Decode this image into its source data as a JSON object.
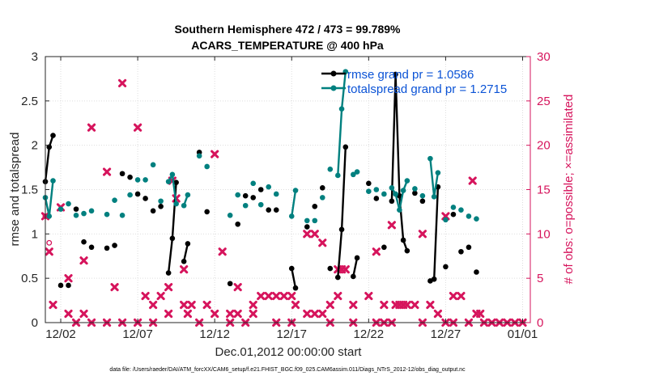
{
  "chart_data": {
    "type": "line",
    "title": [
      "Southern Hemisphere 472 / 473 = 99.789%",
      "ACARS_TEMPERATURE @ 400 hPa"
    ],
    "xlabel": "Dec.01,2012 00:00:00 start",
    "ylabel_left": "rmse and totalspread",
    "ylabel_right": "# of obs: o=possible; ×=assimilated",
    "xlim": [
      0,
      31.5
    ],
    "ylim_left": [
      0,
      3
    ],
    "ylim_right": [
      0,
      30
    ],
    "x_ticks": [
      1,
      6,
      11,
      16,
      21,
      26,
      31
    ],
    "x_tick_labels": [
      "12/02",
      "12/07",
      "12/12",
      "12/17",
      "12/22",
      "12/27",
      "01/01"
    ],
    "y_ticks_left": [
      0,
      0.5,
      1,
      1.5,
      2,
      2.5,
      3
    ],
    "y_tick_labels_left": [
      "0",
      "0.5",
      "1",
      "1.5",
      "2",
      "2.5",
      "3"
    ],
    "y_ticks_right": [
      0,
      5,
      10,
      15,
      20,
      25,
      30
    ],
    "y_tick_labels_right": [
      "0",
      "5",
      "10",
      "15",
      "20",
      "25",
      "30"
    ],
    "colors": {
      "rmse": "#000000",
      "spread": "#00807f",
      "obs": "#d6145c",
      "legend_text": "#0b53d6"
    },
    "legend": [
      {
        "label": "rmse grand pr = 1.0586",
        "series": "rmse"
      },
      {
        "label": "totalspread grand pr = 1.2715",
        "series": "spread"
      }
    ],
    "series": [
      {
        "name": "rmse",
        "points": [
          [
            0,
            1.59
          ],
          [
            0.25,
            1.98
          ],
          [
            0.5,
            2.11
          ],
          [
            1,
            0.42
          ],
          [
            1.5,
            0.42
          ],
          [
            2,
            1.28
          ],
          [
            2.5,
            0.91
          ],
          [
            3,
            0.85
          ],
          [
            4,
            0.84
          ],
          [
            4.5,
            0.87
          ],
          [
            5,
            1.68
          ],
          [
            5.5,
            1.64
          ],
          [
            6,
            1.45
          ],
          [
            6.5,
            1.4
          ],
          [
            7,
            1.26
          ],
          [
            7.5,
            1.31
          ],
          [
            8,
            0.56
          ],
          [
            8.25,
            0.95
          ],
          [
            8.5,
            1.58
          ],
          [
            9,
            0.69
          ],
          [
            9.25,
            0.89
          ],
          [
            10,
            1.92
          ],
          [
            10.5,
            1.25
          ],
          [
            12,
            0.44
          ],
          [
            12.5,
            1.11
          ],
          [
            13,
            1.43
          ],
          [
            13.5,
            1.41
          ],
          [
            14,
            1.5
          ],
          [
            14.5,
            1.27
          ],
          [
            15,
            1.27
          ],
          [
            16,
            0.61
          ],
          [
            16.25,
            0.39
          ],
          [
            17,
            1.08
          ],
          [
            17.5,
            1.31
          ],
          [
            18,
            1.52
          ],
          [
            18.5,
            0.61
          ],
          [
            19,
            0.51
          ],
          [
            19.25,
            1.05
          ],
          [
            19.5,
            1.98
          ],
          [
            20,
            0.52
          ],
          [
            20.25,
            0.73
          ],
          [
            21,
            1.57
          ],
          [
            21.5,
            1.4
          ],
          [
            22,
            0.85
          ],
          [
            22.5,
            1.37
          ],
          [
            22.75,
            2.8
          ],
          [
            23,
            1.43
          ],
          [
            23.25,
            0.93
          ],
          [
            23.5,
            0.81
          ],
          [
            24,
            1.46
          ],
          [
            24.5,
            1.37
          ],
          [
            25,
            0.47
          ],
          [
            25.25,
            0.49
          ],
          [
            25.5,
            1.53
          ],
          [
            26,
            0.63
          ],
          [
            26.5,
            1.22
          ],
          [
            27,
            0.8
          ],
          [
            27.5,
            0.85
          ],
          [
            28,
            0.57
          ]
        ]
      },
      {
        "name": "spread",
        "points": [
          [
            0,
            1.41
          ],
          [
            0.25,
            1.2
          ],
          [
            0.5,
            1.6
          ],
          [
            1,
            1.28
          ],
          [
            1.5,
            1.34
          ],
          [
            2,
            1.21
          ],
          [
            2.5,
            1.23
          ],
          [
            3,
            1.26
          ],
          [
            4,
            1.22
          ],
          [
            4.5,
            1.38
          ],
          [
            5,
            1.21
          ],
          [
            5.5,
            1.44
          ],
          [
            6,
            1.61
          ],
          [
            6.5,
            1.61
          ],
          [
            7,
            1.78
          ],
          [
            7.5,
            1.37
          ],
          [
            8,
            1.59
          ],
          [
            8.25,
            1.67
          ],
          [
            8.5,
            1.34
          ],
          [
            9,
            1.32
          ],
          [
            9.25,
            1.44
          ],
          [
            10,
            1.88
          ],
          [
            10.5,
            1.76
          ],
          [
            12,
            1.21
          ],
          [
            12.5,
            1.44
          ],
          [
            13,
            1.32
          ],
          [
            13.5,
            1.57
          ],
          [
            14,
            1.33
          ],
          [
            14.5,
            1.53
          ],
          [
            15,
            1.45
          ],
          [
            16,
            1.2
          ],
          [
            16.25,
            1.49
          ],
          [
            17,
            1.15
          ],
          [
            17.5,
            1.15
          ],
          [
            18,
            1.41
          ],
          [
            18.5,
            1.73
          ],
          [
            19,
            1.66
          ],
          [
            19.25,
            2.41
          ],
          [
            19.5,
            2.83
          ],
          [
            20,
            1.67
          ],
          [
            20.25,
            1.7
          ],
          [
            21,
            1.48
          ],
          [
            21.5,
            1.5
          ],
          [
            22,
            1.45
          ],
          [
            22.5,
            1.52
          ],
          [
            22.75,
            1.45
          ],
          [
            23,
            1.27
          ],
          [
            23.25,
            1.49
          ],
          [
            23.5,
            1.6
          ],
          [
            24,
            1.51
          ],
          [
            24.5,
            1.43
          ],
          [
            25,
            1.85
          ],
          [
            25.25,
            1.42
          ],
          [
            25.5,
            1.69
          ],
          [
            26,
            1.16
          ],
          [
            26.5,
            1.3
          ],
          [
            27,
            1.27
          ],
          [
            27.5,
            1.2
          ],
          [
            28,
            1.17
          ]
        ]
      }
    ],
    "obs_possible": [
      [
        0,
        12
      ],
      [
        0.25,
        9
      ]
    ],
    "obs_assimilated": [
      [
        0,
        12
      ],
      [
        0.25,
        8
      ],
      [
        0.5,
        2
      ],
      [
        1,
        13
      ],
      [
        1.5,
        1
      ],
      [
        1.5,
        5
      ],
      [
        2,
        0
      ],
      [
        2.5,
        7
      ],
      [
        2.5,
        1
      ],
      [
        3,
        22
      ],
      [
        3,
        0
      ],
      [
        4,
        17
      ],
      [
        4,
        0
      ],
      [
        4.5,
        4
      ],
      [
        5,
        27
      ],
      [
        5,
        0
      ],
      [
        6,
        22
      ],
      [
        6,
        0
      ],
      [
        6.5,
        3
      ],
      [
        7,
        2
      ],
      [
        7,
        0
      ],
      [
        7.5,
        3
      ],
      [
        8,
        1
      ],
      [
        8,
        4
      ],
      [
        8.25,
        16
      ],
      [
        8.5,
        14
      ],
      [
        9,
        2
      ],
      [
        9,
        6
      ],
      [
        9.25,
        1
      ],
      [
        9.5,
        2
      ],
      [
        10,
        0
      ],
      [
        10.5,
        2
      ],
      [
        11,
        19
      ],
      [
        11,
        1
      ],
      [
        11.5,
        8
      ],
      [
        12,
        1
      ],
      [
        12,
        0
      ],
      [
        12.5,
        4
      ],
      [
        12.5,
        1
      ],
      [
        13,
        0
      ],
      [
        13.5,
        2
      ],
      [
        13.5,
        1
      ],
      [
        14,
        3
      ],
      [
        14.5,
        3
      ],
      [
        15,
        0
      ],
      [
        15,
        3
      ],
      [
        15.5,
        3
      ],
      [
        16,
        3
      ],
      [
        16,
        0
      ],
      [
        16.25,
        2
      ],
      [
        17,
        10
      ],
      [
        17,
        1
      ],
      [
        17.5,
        1
      ],
      [
        17.5,
        10
      ],
      [
        18,
        1
      ],
      [
        18,
        9
      ],
      [
        18.5,
        0
      ],
      [
        18.5,
        2
      ],
      [
        19,
        3
      ],
      [
        19,
        6
      ],
      [
        19.25,
        6
      ],
      [
        19.5,
        6
      ],
      [
        20,
        2
      ],
      [
        20,
        0
      ],
      [
        21,
        3
      ],
      [
        21.5,
        8
      ],
      [
        21.5,
        0
      ],
      [
        22,
        2
      ],
      [
        22,
        0
      ],
      [
        22.5,
        11
      ],
      [
        22.5,
        0
      ],
      [
        22.75,
        2
      ],
      [
        23,
        2
      ],
      [
        23.25,
        2
      ],
      [
        23.5,
        2
      ],
      [
        24,
        2
      ],
      [
        24.5,
        10
      ],
      [
        24.5,
        0
      ],
      [
        25,
        2
      ],
      [
        25.5,
        1
      ],
      [
        26,
        12
      ],
      [
        26,
        0
      ],
      [
        26.5,
        3
      ],
      [
        26.5,
        0
      ],
      [
        27,
        3
      ],
      [
        27.5,
        0
      ],
      [
        27.75,
        16
      ],
      [
        28,
        1
      ],
      [
        28.25,
        1
      ],
      [
        28.5,
        0
      ],
      [
        29,
        0
      ],
      [
        29.5,
        0
      ],
      [
        30,
        0
      ],
      [
        30.5,
        0
      ],
      [
        31,
        0
      ]
    ],
    "footer": "data file: /Users/raeder/DAI/ATM_forcXX/CAM6_setup/f.e21.FHIST_BGC.f09_025.CAM6assim.011/Diags_NTrS_2012-12/obs_diag_output.nc"
  }
}
